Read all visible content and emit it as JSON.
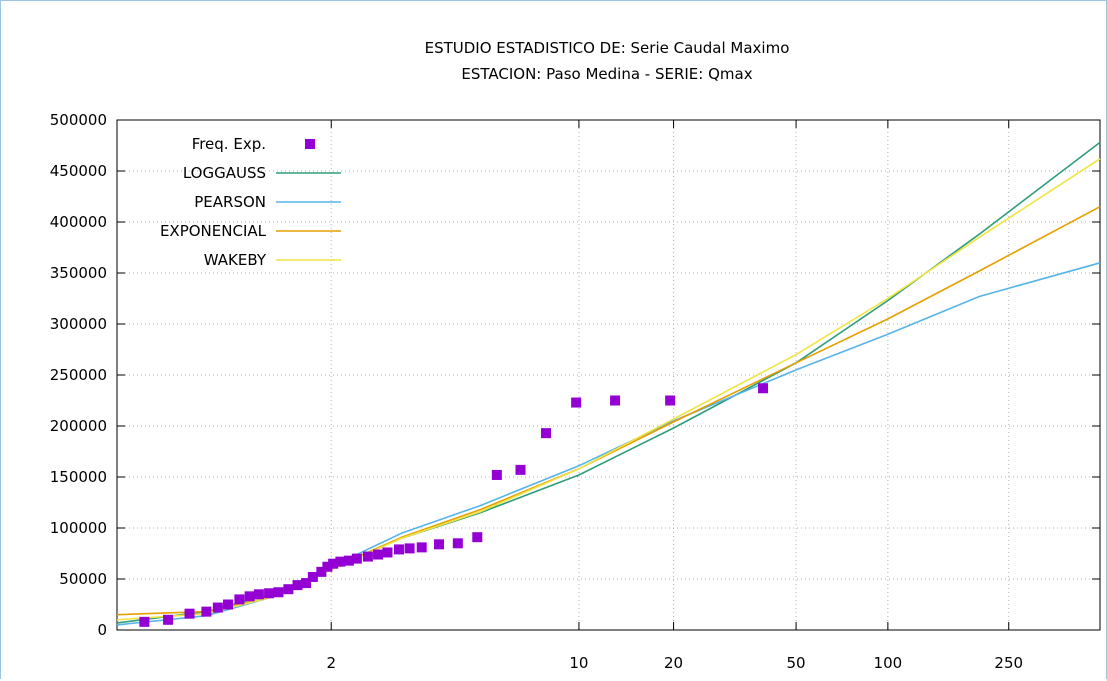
{
  "chart_data": {
    "type": "line",
    "title": "ESTUDIO ESTADISTICO DE: Serie Caudal Maximo",
    "subtitle": "ESTACION: Paso Medina - SERIE: Qmax",
    "xlabel": "",
    "ylabel": "",
    "ylim": [
      0,
      500000
    ],
    "y_ticks": [
      0,
      50000,
      100000,
      150000,
      200000,
      250000,
      300000,
      350000,
      400000,
      450000,
      500000
    ],
    "x_scale": "gumbel (return period, years)",
    "x_tick_labels": [
      "2",
      "10",
      "20",
      "50",
      "100",
      "250"
    ],
    "xlim": [
      1.03,
      500
    ],
    "grid": true,
    "legend_position": "top-left",
    "observed": {
      "name": "Freq. Exp.",
      "color": "#9400d3",
      "points": [
        [
          1.06,
          8000
        ],
        [
          1.1,
          10000
        ],
        [
          1.15,
          16000
        ],
        [
          1.2,
          18000
        ],
        [
          1.24,
          22000
        ],
        [
          1.28,
          25000
        ],
        [
          1.33,
          30000
        ],
        [
          1.38,
          33000
        ],
        [
          1.43,
          35000
        ],
        [
          1.49,
          36000
        ],
        [
          1.55,
          37000
        ],
        [
          1.62,
          40000
        ],
        [
          1.69,
          44000
        ],
        [
          1.76,
          46000
        ],
        [
          1.82,
          52000
        ],
        [
          1.9,
          57000
        ],
        [
          1.96,
          62000
        ],
        [
          2.02,
          65000
        ],
        [
          2.1,
          67000
        ],
        [
          2.2,
          68000
        ],
        [
          2.3,
          70000
        ],
        [
          2.45,
          72000
        ],
        [
          2.6,
          74000
        ],
        [
          2.75,
          76000
        ],
        [
          2.95,
          79000
        ],
        [
          3.15,
          80000
        ],
        [
          3.4,
          81000
        ],
        [
          3.8,
          84000
        ],
        [
          4.3,
          85000
        ],
        [
          4.9,
          91000
        ],
        [
          5.6,
          152000
        ],
        [
          6.6,
          157000
        ],
        [
          7.9,
          193000
        ],
        [
          9.8,
          223000
        ],
        [
          13,
          225000
        ],
        [
          19.5,
          225000
        ],
        [
          39,
          237000
        ]
      ]
    },
    "series": [
      {
        "name": "LOGGAUSS",
        "color": "#2e9e7a",
        "x": [
          1.03,
          1.2,
          1.5,
          2,
          3,
          5,
          10,
          20,
          50,
          100,
          200,
          500
        ],
        "values": [
          7000,
          18000,
          35000,
          60000,
          90000,
          115000,
          152000,
          198000,
          262000,
          323000,
          388000,
          478000
        ]
      },
      {
        "name": "PEARSON",
        "color": "#56b4e9",
        "x": [
          1.03,
          1.2,
          1.5,
          2,
          3,
          5,
          10,
          20,
          50,
          100,
          200,
          500
        ],
        "values": [
          5000,
          14000,
          32000,
          62000,
          95000,
          122000,
          161000,
          205000,
          255000,
          290000,
          327000,
          360000
        ]
      },
      {
        "name": "EXPONENCIAL",
        "color": "#e69f00",
        "x": [
          1.03,
          1.2,
          1.5,
          2,
          3,
          5,
          10,
          20,
          50,
          100,
          200,
          500
        ],
        "values": [
          15000,
          18000,
          32000,
          60000,
          91000,
          118000,
          158000,
          204000,
          262000,
          305000,
          352000,
          415000
        ]
      },
      {
        "name": "WAKEBY",
        "color": "#f0e442",
        "x": [
          1.03,
          1.2,
          1.5,
          2,
          3,
          5,
          10,
          20,
          50,
          100,
          200,
          500
        ],
        "values": [
          10000,
          16000,
          32000,
          59000,
          90000,
          116000,
          158000,
          207000,
          270000,
          325000,
          385000,
          462000
        ]
      }
    ]
  }
}
